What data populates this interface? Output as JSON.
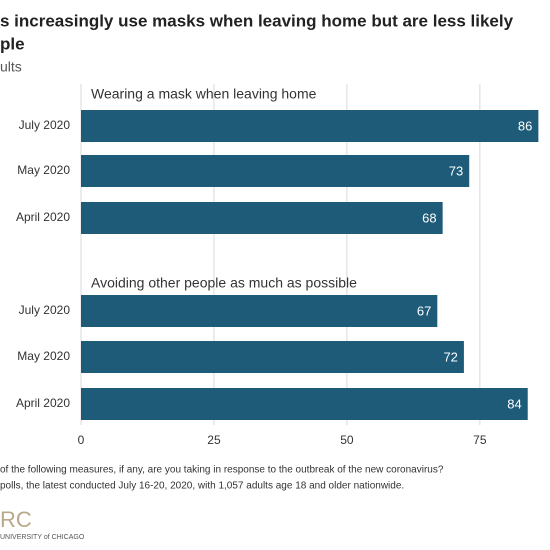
{
  "chart_data": {
    "type": "bar",
    "title": [
      "s increasingly use masks when leaving home but are less likely",
      "ple"
    ],
    "subtitle": "ults",
    "panels": [
      {
        "title": "Wearing a mask when leaving home",
        "categories": [
          "July 2020",
          "May 2020",
          "April 2020"
        ],
        "values": [
          86,
          73,
          68
        ]
      },
      {
        "title": "Avoiding other people as much as possible",
        "categories": [
          "July 2020",
          "May 2020",
          "April 2020"
        ],
        "values": [
          67,
          72,
          84
        ]
      }
    ],
    "color": "#1d5b79",
    "xlim": [
      0,
      88
    ],
    "xticks": [
      0,
      25,
      50,
      75
    ],
    "grid": true,
    "notes": [
      "of the following measures, if any, are you taking in response to the outbreak of the new coronavirus?",
      "polls, the latest conducted July 16-20, 2020, with 1,057 adults age 18 and older nationwide."
    ],
    "logo": [
      "RC",
      "UNIVERSITY of CHICAGO"
    ]
  }
}
